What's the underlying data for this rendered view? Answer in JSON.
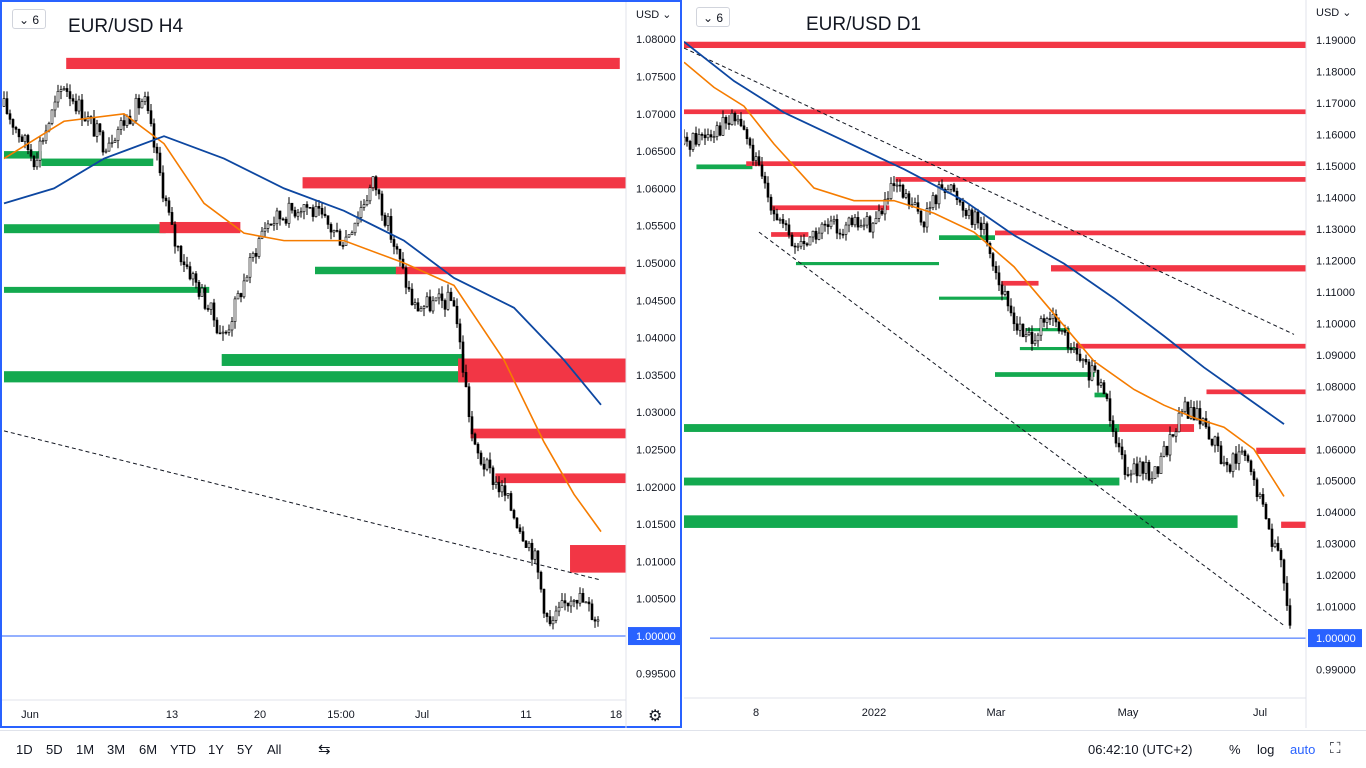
{
  "left_chart": {
    "interval": "6",
    "title": "EUR/USD H4",
    "currency": "USD",
    "y_ticks": [
      "1.08000",
      "1.07500",
      "1.07000",
      "1.06500",
      "1.06000",
      "1.05500",
      "1.05000",
      "1.04500",
      "1.04000",
      "1.03500",
      "1.03000",
      "1.02500",
      "1.02000",
      "1.01500",
      "1.01000",
      "1.00500",
      "0.99500"
    ],
    "last_price": "1.00000",
    "x_ticks": [
      "Jun",
      "13",
      "20",
      "15:00",
      "Jul",
      "11",
      "18"
    ]
  },
  "right_chart": {
    "interval": "6",
    "title": "EUR/USD D1",
    "currency": "USD",
    "y_ticks": [
      "1.19000",
      "1.18000",
      "1.17000",
      "1.16000",
      "1.15000",
      "1.14000",
      "1.13000",
      "1.12000",
      "1.11000",
      "1.10000",
      "1.09000",
      "1.08000",
      "1.07000",
      "1.06000",
      "1.05000",
      "1.04000",
      "1.03000",
      "1.02000",
      "1.01000",
      "0.99000"
    ],
    "last_price": "1.00000",
    "x_ticks": [
      "8",
      "2022",
      "Mar",
      "May",
      "Jul"
    ]
  },
  "bottom_bar": {
    "timeframes": [
      "1D",
      "5D",
      "1M",
      "3M",
      "6M",
      "YTD",
      "1Y",
      "5Y",
      "All"
    ],
    "time": "06:42:10 (UTC+2)",
    "percent": "%",
    "log": "log",
    "auto": "auto"
  },
  "colors": {
    "supply_zone": "#f23645",
    "demand_zone": "#089981",
    "ma_fast": "#f57c00",
    "ma_slow": "#0d47a1",
    "price_line": "#2962ff",
    "candle": "#000000"
  },
  "chart_data": [
    {
      "type": "candlestick",
      "title": "EUR/USD H4",
      "ylim": [
        0.9925,
        1.0815
      ],
      "x_ticks": [
        "Jun",
        "13",
        "20",
        "15:00",
        "Jul",
        "11",
        "18"
      ],
      "last": 1.0,
      "anchors": [
        [
          0,
          1.071
        ],
        [
          30,
          1.064
        ],
        [
          60,
          1.074
        ],
        [
          100,
          1.066
        ],
        [
          140,
          1.072
        ],
        [
          170,
          1.053
        ],
        [
          220,
          1.04
        ],
        [
          260,
          1.055
        ],
        [
          300,
          1.058
        ],
        [
          340,
          1.053
        ],
        [
          370,
          1.061
        ],
        [
          410,
          1.044
        ],
        [
          450,
          1.045
        ],
        [
          470,
          1.025
        ],
        [
          500,
          1.019
        ],
        [
          530,
          1.011
        ],
        [
          545,
          1.001
        ],
        [
          570,
          1.006
        ],
        [
          595,
          1.002
        ]
      ],
      "supply_zones": [
        [
          0.1,
          0.99,
          1.076,
          1.0775
        ],
        [
          0.48,
          1.0,
          1.06,
          1.0615
        ],
        [
          0.25,
          0.38,
          1.054,
          1.0555
        ],
        [
          0.63,
          1.0,
          1.0485,
          1.0495
        ],
        [
          0.73,
          1.0,
          1.034,
          1.0372
        ],
        [
          0.75,
          1.0,
          1.0265,
          1.0278
        ],
        [
          0.79,
          1.0,
          1.0205,
          1.0218
        ],
        [
          0.91,
          1.0,
          1.0085,
          1.0122
        ]
      ],
      "demand_zones": [
        [
          0,
          0.06,
          1.064,
          1.065
        ],
        [
          0.06,
          0.24,
          1.063,
          1.064
        ],
        [
          0,
          0.26,
          1.054,
          1.0552
        ],
        [
          0.5,
          0.64,
          1.0485,
          1.0495
        ],
        [
          0,
          0.33,
          1.046,
          1.0468
        ],
        [
          0.35,
          0.74,
          1.0362,
          1.0378
        ],
        [
          0,
          0.74,
          1.034,
          1.0355
        ]
      ],
      "ma_fast": [
        [
          0,
          1.064
        ],
        [
          60,
          1.069
        ],
        [
          120,
          1.07
        ],
        [
          160,
          1.066
        ],
        [
          200,
          1.058
        ],
        [
          240,
          1.054
        ],
        [
          280,
          1.053
        ],
        [
          340,
          1.053
        ],
        [
          400,
          1.05
        ],
        [
          450,
          1.047
        ],
        [
          500,
          1.037
        ],
        [
          540,
          1.026
        ],
        [
          570,
          1.019
        ],
        [
          597,
          1.014
        ]
      ],
      "ma_slow": [
        [
          0,
          1.058
        ],
        [
          50,
          1.06
        ],
        [
          100,
          1.064
        ],
        [
          160,
          1.067
        ],
        [
          220,
          1.064
        ],
        [
          280,
          1.06
        ],
        [
          340,
          1.057
        ],
        [
          400,
          1.053
        ],
        [
          450,
          1.048
        ],
        [
          510,
          1.044
        ],
        [
          560,
          1.037
        ],
        [
          597,
          1.031
        ]
      ],
      "trendline": [
        [
          0,
          1.0275
        ],
        [
          597,
          1.0075
        ]
      ]
    },
    {
      "type": "candlestick",
      "title": "EUR/USD D1",
      "ylim": [
        0.9835,
        1.1945
      ],
      "x_ticks": [
        "8",
        "2022",
        "Mar",
        "May",
        "Jul"
      ],
      "last": 1.0,
      "anchors": [
        [
          0,
          1.157
        ],
        [
          30,
          1.162
        ],
        [
          55,
          1.165
        ],
        [
          75,
          1.148
        ],
        [
          95,
          1.133
        ],
        [
          110,
          1.124
        ],
        [
          140,
          1.13
        ],
        [
          190,
          1.132
        ],
        [
          210,
          1.143
        ],
        [
          240,
          1.133
        ],
        [
          260,
          1.145
        ],
        [
          300,
          1.13
        ],
        [
          320,
          1.108
        ],
        [
          340,
          1.095
        ],
        [
          370,
          1.101
        ],
        [
          390,
          1.09
        ],
        [
          420,
          1.079
        ],
        [
          440,
          1.055
        ],
        [
          470,
          1.052
        ],
        [
          500,
          1.073
        ],
        [
          520,
          1.069
        ],
        [
          540,
          1.055
        ],
        [
          560,
          1.058
        ],
        [
          580,
          1.04
        ],
        [
          600,
          1.02
        ],
        [
          607,
          1.003
        ]
      ],
      "supply_zones": [
        [
          0.0,
          1.0,
          1.1875,
          1.1895
        ],
        [
          0.0,
          1.0,
          1.1665,
          1.168
        ],
        [
          0.1,
          1.0,
          1.15,
          1.1515
        ],
        [
          0.34,
          1.0,
          1.145,
          1.1465
        ],
        [
          0.14,
          0.33,
          1.136,
          1.1375
        ],
        [
          0.14,
          0.2,
          1.1275,
          1.129
        ],
        [
          0.5,
          1.0,
          1.128,
          1.1295
        ],
        [
          0.51,
          0.57,
          1.112,
          1.1135
        ],
        [
          0.59,
          1.0,
          1.1165,
          1.1185
        ],
        [
          0.63,
          1.0,
          1.092,
          1.0935
        ],
        [
          0.7,
          0.82,
          1.0655,
          1.068
        ],
        [
          0.84,
          1.0,
          1.0775,
          1.079
        ],
        [
          0.92,
          1.0,
          1.0585,
          1.0605
        ],
        [
          0.96,
          1.0,
          1.035,
          1.037
        ]
      ],
      "demand_zones": [
        [
          0.02,
          0.11,
          1.149,
          1.1505
        ],
        [
          0.18,
          0.41,
          1.1185,
          1.1195
        ],
        [
          0.41,
          0.5,
          1.1265,
          1.128
        ],
        [
          0.41,
          0.52,
          1.1075,
          1.1085
        ],
        [
          0.55,
          0.62,
          1.0975,
          1.0985
        ],
        [
          0.54,
          0.63,
          1.0915,
          1.0925
        ],
        [
          0.5,
          0.66,
          1.083,
          1.0845
        ],
        [
          0.66,
          0.68,
          1.0765,
          1.078
        ],
        [
          0.0,
          0.7,
          1.0655,
          1.068
        ],
        [
          0.0,
          0.7,
          1.0485,
          1.051
        ],
        [
          0.0,
          0.89,
          1.035,
          1.039
        ]
      ],
      "ma_fast": [
        [
          0,
          1.183
        ],
        [
          30,
          1.175
        ],
        [
          60,
          1.169
        ],
        [
          90,
          1.157
        ],
        [
          130,
          1.143
        ],
        [
          170,
          1.139
        ],
        [
          210,
          1.139
        ],
        [
          250,
          1.135
        ],
        [
          290,
          1.129
        ],
        [
          330,
          1.118
        ],
        [
          370,
          1.103
        ],
        [
          410,
          1.088
        ],
        [
          450,
          1.079
        ],
        [
          480,
          1.074
        ],
        [
          510,
          1.07
        ],
        [
          540,
          1.067
        ],
        [
          570,
          1.06
        ],
        [
          600,
          1.045
        ]
      ],
      "ma_slow": [
        [
          0,
          1.1895
        ],
        [
          50,
          1.177
        ],
        [
          100,
          1.167
        ],
        [
          160,
          1.158
        ],
        [
          220,
          1.149
        ],
        [
          280,
          1.139
        ],
        [
          330,
          1.128
        ],
        [
          380,
          1.119
        ],
        [
          430,
          1.108
        ],
        [
          480,
          1.096
        ],
        [
          520,
          1.086
        ],
        [
          560,
          1.077
        ],
        [
          600,
          1.068
        ]
      ],
      "trendline": [
        [
          0,
          1.1875
        ],
        [
          610,
          1.0965
        ]
      ],
      "trendline2": [
        [
          75,
          1.129
        ],
        [
          600,
          1.004
        ]
      ]
    }
  ]
}
